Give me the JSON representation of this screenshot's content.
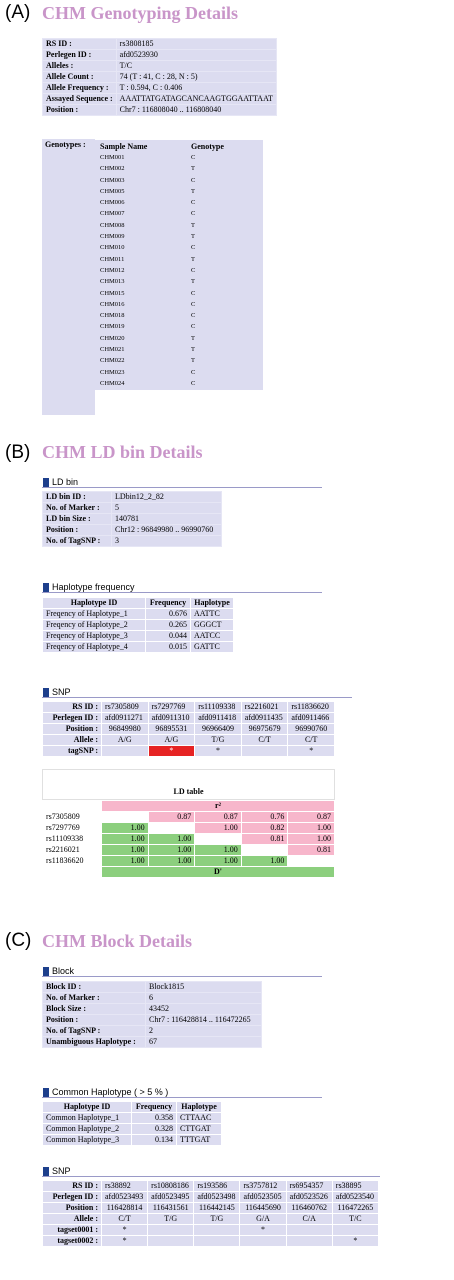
{
  "panelA": {
    "letter": "(A)",
    "title": "CHM Genotyping Details",
    "rows": [
      {
        "label": "RS ID :",
        "value": "rs3808185"
      },
      {
        "label": "Perlegen ID :",
        "value": "afd0523930"
      },
      {
        "label": "Alleles :",
        "value": "T/C"
      },
      {
        "label": "Allele Count :",
        "value": "74 (T : 41,  C : 28,  N : 5)"
      },
      {
        "label": "Allele Frequency :",
        "value": "T : 0.594,   C : 0.406"
      },
      {
        "label": "Assayed Sequence :",
        "value": "AAATTATGATAGCANCAAGTGGAATTAAT"
      },
      {
        "label": "Position :",
        "value": "Chr7 : 116808040 .. 116808040"
      }
    ],
    "genotypes_label": "Genotypes :",
    "genotype_headers": [
      "Sample Name",
      "Genotype"
    ],
    "genotypes": [
      [
        "CHM001",
        "C"
      ],
      [
        "CHM002",
        "T"
      ],
      [
        "CHM003",
        "C"
      ],
      [
        "CHM005",
        "T"
      ],
      [
        "CHM006",
        "C"
      ],
      [
        "CHM007",
        "C"
      ],
      [
        "CHM008",
        "T"
      ],
      [
        "CHM009",
        "T"
      ],
      [
        "CHM010",
        "C"
      ],
      [
        "CHM011",
        "T"
      ],
      [
        "CHM012",
        "C"
      ],
      [
        "CHM013",
        "T"
      ],
      [
        "CHM015",
        "C"
      ],
      [
        "CHM016",
        "C"
      ],
      [
        "CHM018",
        "C"
      ],
      [
        "CHM019",
        "C"
      ],
      [
        "CHM020",
        "T"
      ],
      [
        "CHM021",
        "T"
      ],
      [
        "CHM022",
        "T"
      ],
      [
        "CHM023",
        "C"
      ],
      [
        "CHM024",
        "C"
      ]
    ]
  },
  "panelB": {
    "letter": "(B)",
    "title": "CHM LD bin Details",
    "ldbin_heading": "LD bin",
    "ldbin_rows": [
      {
        "label": "LD bin ID :",
        "value": "LDbin12_2_82"
      },
      {
        "label": "No. of Marker :",
        "value": "5"
      },
      {
        "label": "LD bin Size :",
        "value": "140781"
      },
      {
        "label": "Position :",
        "value": "Chr12 : 96849980 .. 96990760"
      },
      {
        "label": "No. of TagSNP :",
        "value": "3"
      }
    ],
    "haplo_heading": "Haplotype frequency",
    "haplo_headers": [
      "Haplotype ID",
      "Frequency",
      "Haplotype"
    ],
    "haplo_rows": [
      [
        "Freqency of Haplotype_1",
        "0.676",
        "AATTC"
      ],
      [
        "Freqency of Haplotype_2",
        "0.265",
        "GGGCT"
      ],
      [
        "Freqency of Haplotype_3",
        "0.044",
        "AATCC"
      ],
      [
        "Freqency of Haplotype_4",
        "0.015",
        "GATTC"
      ]
    ],
    "snp_heading": "SNP",
    "snp_row_labels": [
      "RS ID :",
      "Perlegen ID :",
      "Position :",
      "Allele :",
      "tagSNP :"
    ],
    "snp_cols": [
      [
        "rs7305809",
        "afd0911271",
        "96849980",
        "A/G",
        ""
      ],
      [
        "rs7297769",
        "afd0911310",
        "96895531",
        "A/G",
        "*"
      ],
      [
        "rs11109338",
        "afd0911418",
        "96966409",
        "T/G",
        "*"
      ],
      [
        "rs2216021",
        "afd0911435",
        "96975679",
        "C/T",
        ""
      ],
      [
        "rs11836620",
        "afd0911466",
        "96990760",
        "C/T",
        "*"
      ]
    ],
    "ld_title": "LD table",
    "ld_r2": "r²",
    "ld_dprime": "D'",
    "ld_rows": [
      {
        "name": "rs7305809",
        "cells": [
          "",
          "0.87",
          "0.87",
          "0.76",
          "0.87"
        ]
      },
      {
        "name": "rs7297769",
        "cells": [
          "1.00",
          "",
          "1.00",
          "0.82",
          "1.00"
        ]
      },
      {
        "name": "rs11109338",
        "cells": [
          "1.00",
          "1.00",
          "",
          "0.81",
          "1.00"
        ]
      },
      {
        "name": "rs2216021",
        "cells": [
          "1.00",
          "1.00",
          "1.00",
          "",
          "0.81"
        ]
      },
      {
        "name": "rs11836620",
        "cells": [
          "1.00",
          "1.00",
          "1.00",
          "1.00",
          ""
        ]
      }
    ]
  },
  "panelC": {
    "letter": "(C)",
    "title": "CHM Block Details",
    "block_heading": "Block",
    "block_rows": [
      {
        "label": "Block ID :",
        "value": "Block1815"
      },
      {
        "label": "No. of Marker :",
        "value": "6"
      },
      {
        "label": "Block Size :",
        "value": "43452"
      },
      {
        "label": "Position :",
        "value": "Chr7 : 116428814 .. 116472265"
      },
      {
        "label": "No. of TagSNP :",
        "value": "2"
      },
      {
        "label": "Unambiguous Haplotype :",
        "value": "67"
      }
    ],
    "common_heading": "Common Haplotype ( > 5 % )",
    "common_headers": [
      "Haplotype ID",
      "Frequency",
      "Haplotype"
    ],
    "common_rows": [
      [
        "Common Haplotype_1",
        "0.358",
        "CTTAAC"
      ],
      [
        "Common Haplotype_2",
        "0.328",
        "CTTGAT"
      ],
      [
        "Common Haplotype_3",
        "0.134",
        "TTTGAT"
      ]
    ],
    "snp_heading": "SNP",
    "snp_row_labels": [
      "RS ID :",
      "Perlegen ID :",
      "Position :",
      "Allele :",
      "tagset0001 :",
      "tagset0002 :"
    ],
    "snp_cols": [
      [
        "rs38892",
        "afd0523493",
        "116428814",
        "C/T",
        "*",
        "*"
      ],
      [
        "rs10808186",
        "afd0523495",
        "116431561",
        "T/G",
        "",
        ""
      ],
      [
        "rs193586",
        "afd0523498",
        "116442145",
        "T/G",
        "",
        ""
      ],
      [
        "rs3757812",
        "afd0523505",
        "116445690",
        "G/A",
        "*",
        ""
      ],
      [
        "rs6954357",
        "afd0523526",
        "116460762",
        "C/A",
        "",
        ""
      ],
      [
        "rs38895",
        "afd0523540",
        "116472265",
        "T/C",
        "",
        "*"
      ]
    ]
  },
  "colors": {
    "title": "#c995c9",
    "cell": "#dcdcf0",
    "r2": "#f7b6cb",
    "dprime": "#8ccf7e",
    "tag_highlight": "#e62323",
    "section_marker": "#1d3f8c"
  }
}
